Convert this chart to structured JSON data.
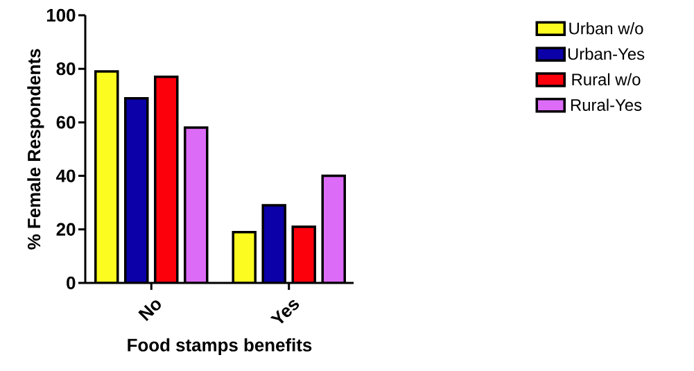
{
  "chart_data": {
    "type": "bar",
    "xlabel": "Food stamps benefits",
    "ylabel": "% Female Respondents",
    "categories": [
      "No",
      "Yes"
    ],
    "series": [
      {
        "name": "Urban w/o",
        "color": "#fcfc20",
        "values": [
          79,
          19
        ]
      },
      {
        "name": "Urban-Yes",
        "color": "#0c00a8",
        "values": [
          69,
          29
        ]
      },
      {
        "name": "Rural w/o",
        "color": "#fc000c",
        "values": [
          77,
          21
        ]
      },
      {
        "name": "Rural-Yes",
        "color": "#dc6cf8",
        "values": [
          58,
          40
        ]
      }
    ],
    "ylim": [
      0,
      100
    ],
    "yticks": [
      0,
      20,
      40,
      60,
      80,
      100
    ],
    "legend": "right"
  }
}
